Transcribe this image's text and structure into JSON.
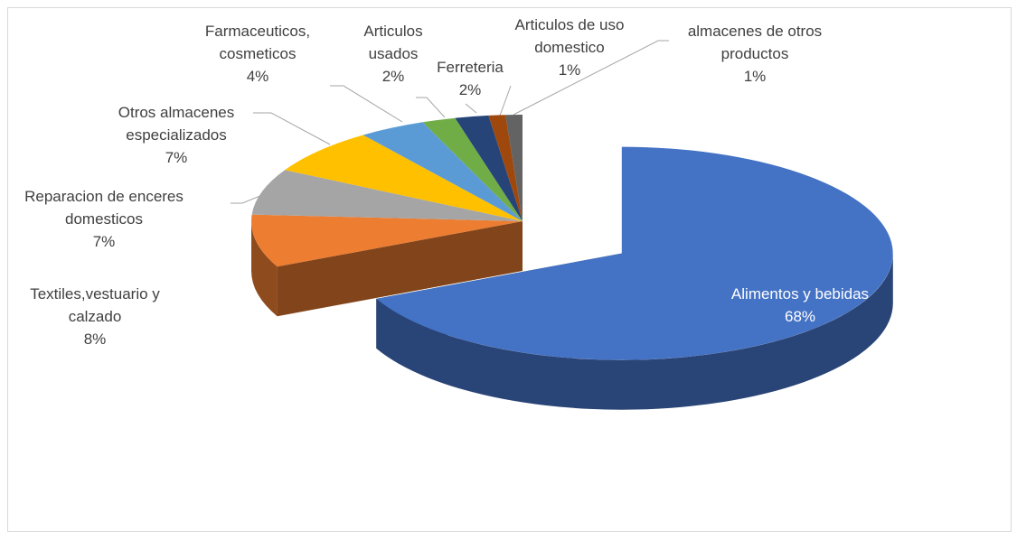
{
  "chart_data": {
    "type": "pie",
    "categories": [
      "Alimentos  y bebidas",
      "Textiles,vestuario y calzado",
      "Reparacion de enceres domesticos",
      "Otros almacenes especializados",
      "Farmaceuticos, cosmeticos",
      "Articulos usados",
      "Ferreteria",
      "Articulos de uso domestico",
      "almacenes de otros productos"
    ],
    "values": [
      68,
      8,
      7,
      7,
      4,
      2,
      2,
      1,
      1
    ],
    "value_labels": [
      "68%",
      "8%",
      "7%",
      "7%",
      "4%",
      "2%",
      "2%",
      "1%",
      "1%"
    ],
    "colors": [
      "#4472c4",
      "#ed7d31",
      "#a5a5a5",
      "#ffc000",
      "#5b9bd5",
      "#70ad47",
      "#264478",
      "#9e480e",
      "#636363"
    ]
  }
}
